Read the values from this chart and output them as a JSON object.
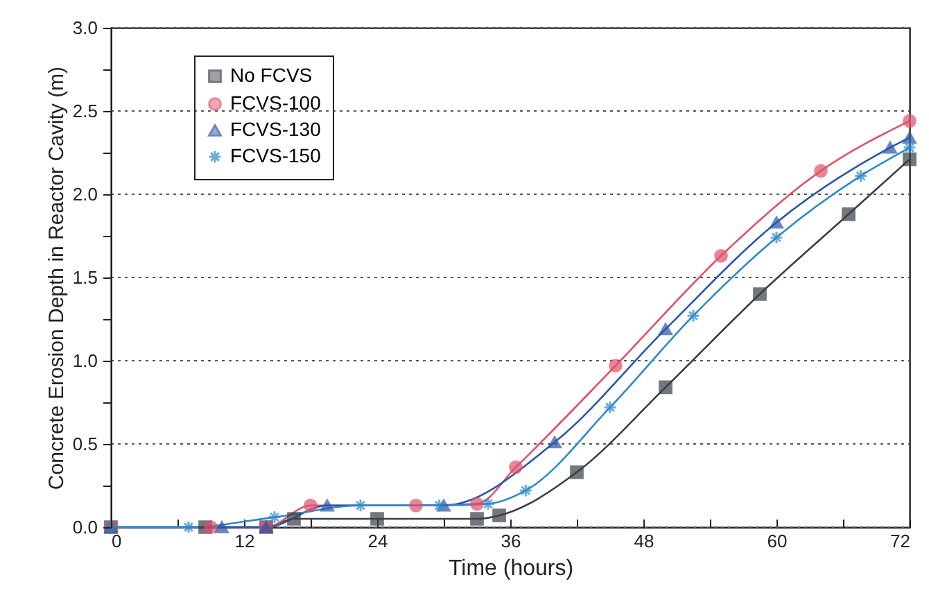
{
  "chart_data": {
    "type": "line",
    "xlabel": "Time (hours)",
    "ylabel": "Concrete Erosion Depth in Reactor Cavity (m)",
    "xlim": [
      0,
      72
    ],
    "ylim": [
      0,
      3.0
    ],
    "xticks": [
      0,
      {
        "value": 6,
        "label": null
      },
      12,
      {
        "value": 18,
        "label": null
      },
      24,
      {
        "value": 30,
        "label": null
      },
      36,
      {
        "value": 42,
        "label": null
      },
      48,
      {
        "value": 54,
        "label": null
      },
      60,
      {
        "value": 66,
        "label": null
      },
      72
    ],
    "yticks": [
      {
        "value": 0,
        "label": "0.0"
      },
      {
        "value": 0.25,
        "label": null
      },
      {
        "value": 0.5,
        "label": "0.5"
      },
      {
        "value": 0.75,
        "label": null
      },
      {
        "value": 1.0,
        "label": "1.0"
      },
      {
        "value": 1.25,
        "label": null
      },
      {
        "value": 1.5,
        "label": "1.5"
      },
      {
        "value": 1.75,
        "label": null
      },
      {
        "value": 2.0,
        "label": "2.0"
      },
      {
        "value": 2.25,
        "label": null
      },
      {
        "value": 2.5,
        "label": "2.5"
      },
      {
        "value": 2.75,
        "label": null
      },
      {
        "value": 3.0,
        "label": "3.0"
      }
    ],
    "grid": "y",
    "legend": "top left",
    "line_style": "solid",
    "series": [
      {
        "name": "No FCVS",
        "color": "#3a3f47",
        "marker": "square",
        "x": [
          0,
          8.5,
          14,
          16.5,
          24,
          33,
          35,
          42,
          50,
          58.5,
          66.5,
          72
        ],
        "values": [
          0,
          0,
          0,
          0.05,
          0.05,
          0.05,
          0.07,
          0.33,
          0.84,
          1.4,
          1.88,
          2.21
        ]
      },
      {
        "name": "FCVS-100",
        "color": "#e0506a",
        "marker": "circle",
        "x": [
          0,
          9,
          14,
          18,
          27.5,
          33,
          36.5,
          45.5,
          55,
          64,
          72
        ],
        "values": [
          0,
          0,
          0,
          0.13,
          0.13,
          0.14,
          0.36,
          0.97,
          1.63,
          2.14,
          2.44
        ]
      },
      {
        "name": "FCVS-130",
        "color": "#2a55a8",
        "marker": "triangle",
        "x": [
          0,
          10,
          14,
          19.5,
          30,
          40,
          50,
          60,
          70.25,
          72
        ],
        "values": [
          0,
          0,
          0,
          0.13,
          0.13,
          0.51,
          1.19,
          1.83,
          2.28,
          2.34
        ]
      },
      {
        "name": "FCVS-150",
        "color": "#2c8ac6",
        "marker": "cross",
        "x": [
          0,
          7,
          14.75,
          22.5,
          29.6,
          34,
          37.4,
          45,
          52.5,
          60,
          67.6,
          72
        ],
        "values": [
          0,
          0,
          0.06,
          0.13,
          0.13,
          0.14,
          0.22,
          0.72,
          1.27,
          1.74,
          2.11,
          2.28
        ]
      }
    ]
  }
}
